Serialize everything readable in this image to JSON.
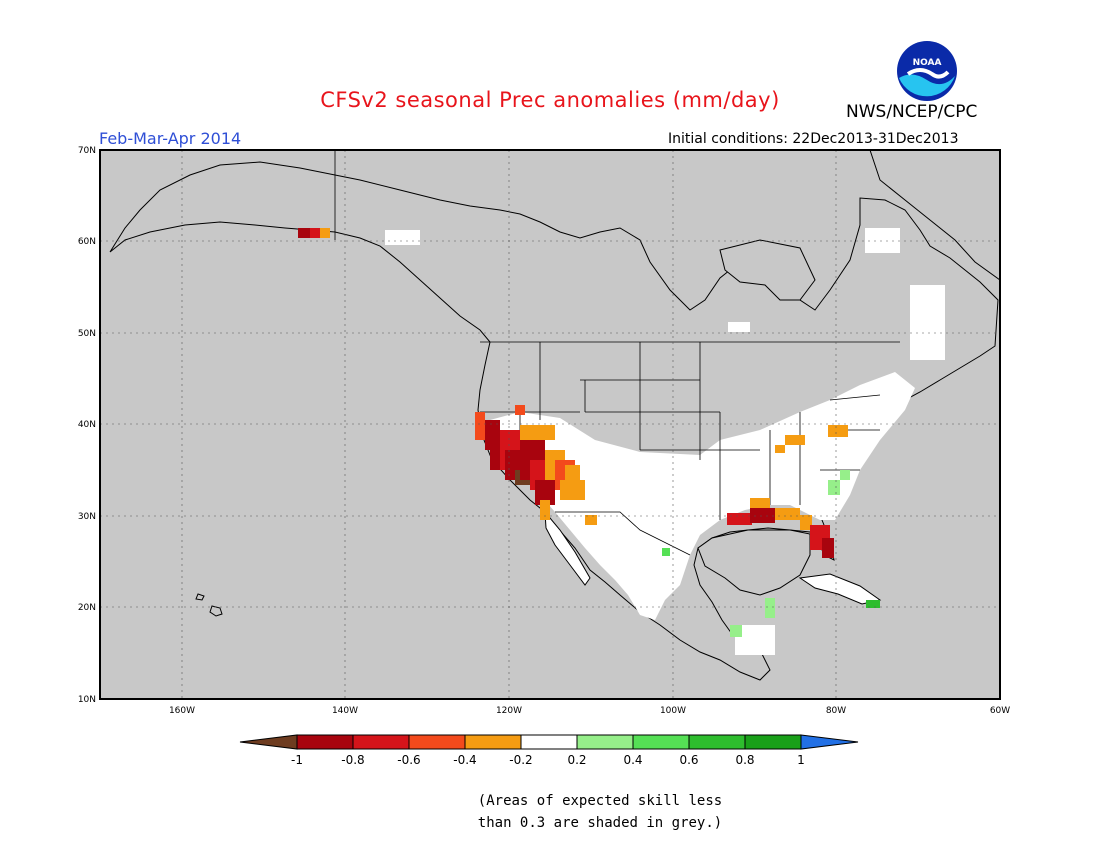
{
  "header": {
    "title": "CFSv2 seasonal Prec anomalies (mm/day)",
    "agency": "NWS/NCEP/CPC",
    "logo_text": "NOAA",
    "period": "Feb-Mar-Apr 2014",
    "initial_conditions": "Initial conditions: 22Dec2013-31Dec2013"
  },
  "map": {
    "lat_range": [
      10,
      70
    ],
    "lon_range": [
      -170,
      -60
    ],
    "lat_labels": [
      "70N",
      "60N",
      "50N",
      "40N",
      "30N",
      "20N",
      "10N"
    ],
    "lon_labels": [
      "160W",
      "140W",
      "120W",
      "100W",
      "80W",
      "60W"
    ],
    "ocean_color": "#c8c8c8",
    "land_color": "#ffffff"
  },
  "colorbar": {
    "labels": [
      "-1",
      "-0.8",
      "-0.6",
      "-0.4",
      "-0.2",
      "0.2",
      "0.4",
      "0.6",
      "0.8",
      "1"
    ],
    "colors": [
      "#6e3c20",
      "#a8040e",
      "#d5141a",
      "#f34a1c",
      "#f59c12",
      "#ffffff",
      "#96ef8a",
      "#55e055",
      "#2ebd2e",
      "#19a019",
      "#2270e5"
    ]
  },
  "note": {
    "line1": "(Areas of expected skill less",
    "line2": "than 0.3 are shaded in grey.)"
  }
}
